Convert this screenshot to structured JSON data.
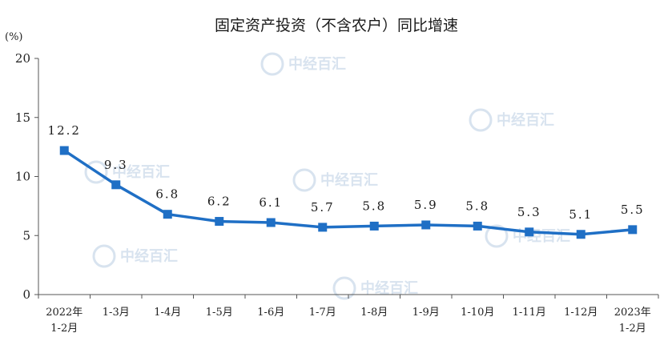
{
  "chart_data": {
    "type": "line",
    "title": "固定资产投资（不含农户）同比增速",
    "unit_label": "(%)",
    "categories": [
      [
        "2022年",
        "1-2月"
      ],
      [
        "1-3月"
      ],
      [
        "1-4月"
      ],
      [
        "1-5月"
      ],
      [
        "1-6月"
      ],
      [
        "1-7月"
      ],
      [
        "1-8月"
      ],
      [
        "1-9月"
      ],
      [
        "1-10月"
      ],
      [
        "1-11月"
      ],
      [
        "1-12月"
      ],
      [
        "2023年",
        "1-2月"
      ]
    ],
    "values": [
      12.2,
      9.3,
      6.8,
      6.2,
      6.1,
      5.7,
      5.8,
      5.9,
      5.8,
      5.3,
      5.1,
      5.5
    ],
    "data_labels": [
      "12.2",
      "9.3",
      "6.8",
      "6.2",
      "6.1",
      "5.7",
      "5.8",
      "5.9",
      "5.8",
      "5.3",
      "5.1",
      "5.5"
    ],
    "ylim": [
      0,
      20
    ],
    "yticks": [
      0,
      5,
      10,
      15,
      20
    ],
    "grid": false,
    "line_color": "#1f6fc5",
    "axis_color": "#555555"
  },
  "watermark": {
    "text": "中经百汇",
    "color": "#d8e3ef"
  }
}
